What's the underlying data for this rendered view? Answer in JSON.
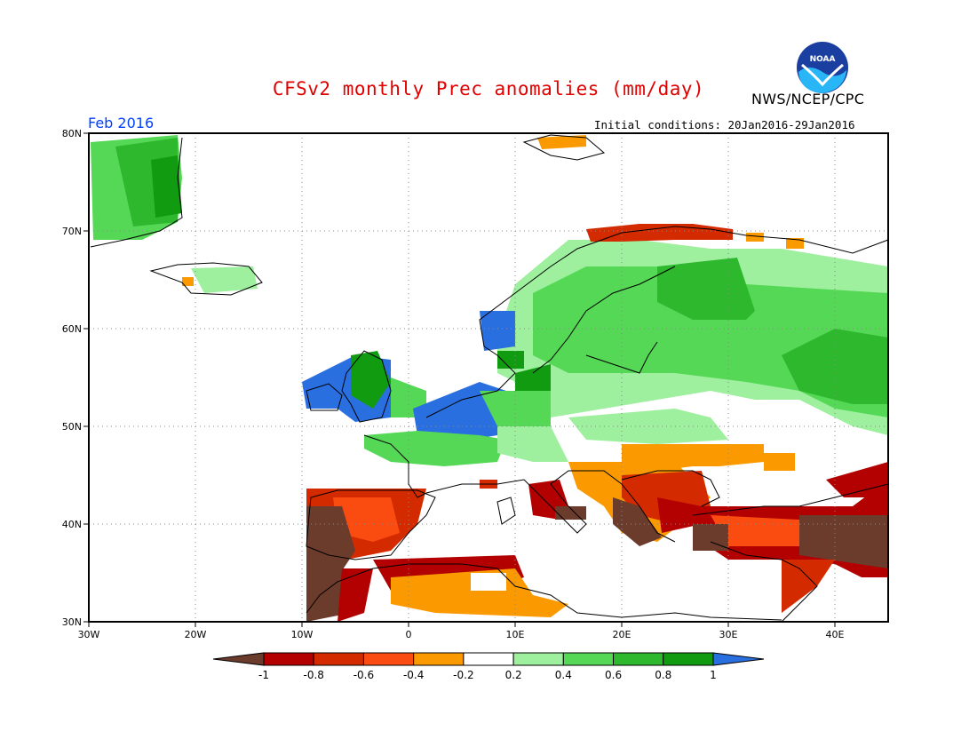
{
  "title": "CFSv2 monthly Prec anomalies (mm/day)",
  "organization": "NWS/NCEP/CPC",
  "logo_text": "NOAA",
  "month_label": "Feb 2016",
  "initial_conditions": "Initial conditions: 20Jan2016-29Jan2016",
  "lat_labels": [
    "80N",
    "70N",
    "60N",
    "50N",
    "40N",
    "30N"
  ],
  "lon_labels": [
    "30W",
    "20W",
    "10W",
    "0",
    "10E",
    "20E",
    "30E",
    "40E"
  ],
  "colorbar": {
    "labels": [
      "-1",
      "-0.8",
      "-0.6",
      "-0.4",
      "-0.2",
      "0.2",
      "0.4",
      "0.6",
      "0.8",
      "1"
    ],
    "colors": [
      "#6b3b2c",
      "#b30000",
      "#d42a00",
      "#fa4b10",
      "#fa9a00",
      "#ffffff",
      "#9ef09e",
      "#55d855",
      "#2eb82e",
      "#109b10",
      "#2a6fe0"
    ]
  },
  "colors": {
    "land_outline": "#000000",
    "grid": "#888888",
    "title": "#e00000",
    "month": "#0040ff"
  }
}
